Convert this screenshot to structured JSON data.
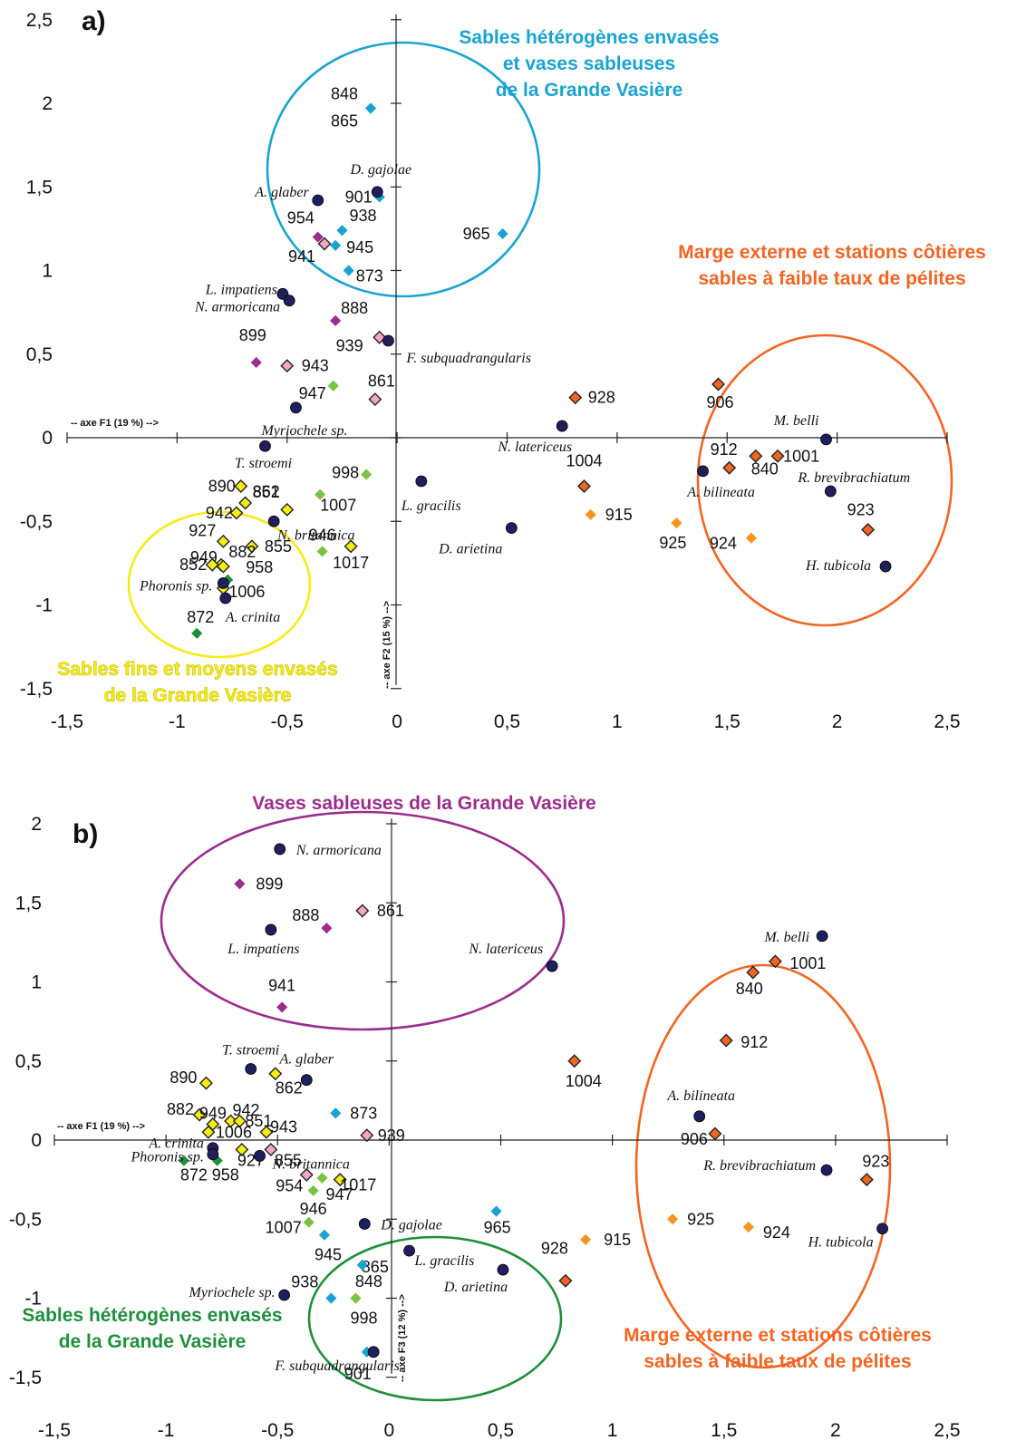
{
  "chart_data": [
    {
      "type": "scatter",
      "panel_label": "a)",
      "xlabel": "-- axe F1 (19 %) -->",
      "ylabel": "-- axe F2 (15 %) -->",
      "xlim": [
        -1.5,
        2.5
      ],
      "ylim": [
        -1.5,
        2.5
      ],
      "xticks": [
        "-1,5",
        "-1",
        "-0,5",
        "0",
        "0,5",
        "1",
        "1,5",
        "2",
        "2,5"
      ],
      "yticks": [
        "2,5",
        "2",
        "1,5",
        "1",
        "0,5",
        "0",
        "-0,5",
        "-1",
        "-1,5"
      ],
      "species": [
        {
          "name": "A. glaber",
          "x": -0.36,
          "y": 1.42
        },
        {
          "name": "D. gajolae",
          "x": -0.09,
          "y": 1.47
        },
        {
          "name": "L. impatiens",
          "x": -0.52,
          "y": 0.86
        },
        {
          "name": "N. armoricana",
          "x": -0.49,
          "y": 0.82
        },
        {
          "name": "F. subquadrangularis",
          "x": -0.04,
          "y": 0.58
        },
        {
          "name": "Myriochele sp.",
          "x": -0.46,
          "y": 0.18
        },
        {
          "name": "T. stroemi",
          "x": -0.6,
          "y": -0.05
        },
        {
          "name": "N. britannica",
          "x": -0.56,
          "y": -0.5
        },
        {
          "name": "Phoronis sp.",
          "x": -0.79,
          "y": -0.87
        },
        {
          "name": "A. crinita",
          "x": -0.78,
          "y": -0.96
        },
        {
          "name": "L. gracilis",
          "x": 0.11,
          "y": -0.26
        },
        {
          "name": "D. arietina",
          "x": 0.52,
          "y": -0.54
        },
        {
          "name": "N. latericeus",
          "x": 0.75,
          "y": 0.07
        },
        {
          "name": "M. belli",
          "x": 1.95,
          "y": -0.01
        },
        {
          "name": "A. bilineata",
          "x": 1.39,
          "y": -0.2
        },
        {
          "name": "R. brevibrachiatum",
          "x": 1.97,
          "y": -0.32
        },
        {
          "name": "H. tubicola",
          "x": 2.22,
          "y": -0.77
        }
      ],
      "stations": [
        {
          "name": "848",
          "x": -0.12,
          "y": 1.97,
          "group": "cyan"
        },
        {
          "name": "865",
          "x": -0.12,
          "y": 1.97,
          "group": "cyan"
        },
        {
          "name": "901",
          "x": -0.08,
          "y": 1.44,
          "group": "cyan"
        },
        {
          "name": "938",
          "x": -0.25,
          "y": 1.24,
          "group": "cyan"
        },
        {
          "name": "945",
          "x": -0.28,
          "y": 1.15,
          "group": "cyan"
        },
        {
          "name": "873",
          "x": -0.22,
          "y": 1.0,
          "group": "cyan"
        },
        {
          "name": "965",
          "x": 0.48,
          "y": 1.22,
          "group": "cyan"
        },
        {
          "name": "954",
          "x": -0.36,
          "y": 1.2,
          "group": "purple"
        },
        {
          "name": "941",
          "x": -0.33,
          "y": 1.16,
          "group": "pink"
        },
        {
          "name": "888",
          "x": -0.28,
          "y": 0.7,
          "group": "purple"
        },
        {
          "name": "899",
          "x": -0.64,
          "y": 0.45,
          "group": "purple"
        },
        {
          "name": "943",
          "x": -0.5,
          "y": 0.43,
          "group": "pink"
        },
        {
          "name": "939",
          "x": -0.08,
          "y": 0.6,
          "group": "pink"
        },
        {
          "name": "861",
          "x": -0.1,
          "y": 0.23,
          "group": "pink"
        },
        {
          "name": "947",
          "x": -0.29,
          "y": 0.31,
          "group": "lightgreen"
        },
        {
          "name": "998",
          "x": -0.14,
          "y": -0.22,
          "group": "lightgreen"
        },
        {
          "name": "1007",
          "x": -0.35,
          "y": -0.34,
          "group": "lightgreen"
        },
        {
          "name": "946",
          "x": -0.34,
          "y": -0.68,
          "group": "lightgreen"
        },
        {
          "name": "890",
          "x": -0.71,
          "y": -0.29,
          "group": "yellow"
        },
        {
          "name": "851",
          "x": -0.69,
          "y": -0.39,
          "group": "yellow"
        },
        {
          "name": "862",
          "x": -0.5,
          "y": -0.43,
          "group": "yellow"
        },
        {
          "name": "942",
          "x": -0.73,
          "y": -0.45,
          "group": "yellow"
        },
        {
          "name": "927",
          "x": -0.79,
          "y": -0.62,
          "group": "yellow"
        },
        {
          "name": "855",
          "x": -0.66,
          "y": -0.65,
          "group": "yellow"
        },
        {
          "name": "1017",
          "x": -0.21,
          "y": -0.65,
          "group": "yellow"
        },
        {
          "name": "949",
          "x": -0.8,
          "y": -0.76,
          "group": "yellow"
        },
        {
          "name": "852",
          "x": -0.84,
          "y": -0.76,
          "group": "yellow"
        },
        {
          "name": "882",
          "x": -0.79,
          "y": -0.77,
          "group": "yellow"
        },
        {
          "name": "958",
          "x": -0.77,
          "y": -0.85,
          "group": "darkgreen"
        },
        {
          "name": "1006",
          "x": -0.79,
          "y": -0.9,
          "group": "yellow"
        },
        {
          "name": "872",
          "x": -0.91,
          "y": -1.17,
          "group": "darkgreen"
        },
        {
          "name": "906",
          "x": 1.46,
          "y": 0.32,
          "group": "darkorange"
        },
        {
          "name": "928",
          "x": 0.81,
          "y": 0.24,
          "group": "darkorange"
        },
        {
          "name": "912",
          "x": 1.51,
          "y": -0.18,
          "group": "darkorange"
        },
        {
          "name": "840",
          "x": 1.63,
          "y": -0.11,
          "group": "darkorange"
        },
        {
          "name": "1001",
          "x": 1.73,
          "y": -0.11,
          "group": "darkorange"
        },
        {
          "name": "1004",
          "x": 0.85,
          "y": -0.29,
          "group": "darkorange"
        },
        {
          "name": "915",
          "x": 0.88,
          "y": -0.46,
          "group": "orange"
        },
        {
          "name": "925",
          "x": 1.27,
          "y": -0.51,
          "group": "orange"
        },
        {
          "name": "924",
          "x": 1.61,
          "y": -0.6,
          "group": "orange"
        },
        {
          "name": "923",
          "x": 2.14,
          "y": -0.55,
          "group": "darkorange"
        }
      ],
      "groups": [
        {
          "label": [
            "Sables hétérogènes envasés",
            "et vases sableuses",
            "de la Grande Vasière"
          ],
          "color": "#1aa3d0"
        },
        {
          "label": [
            "Marge externe et stations côtières",
            "sables à faible taux de pélites"
          ],
          "color": "#f26522"
        },
        {
          "label": [
            "Sables fins et moyens envasés",
            "de la Grande Vasière"
          ],
          "color": "#f5ec18"
        }
      ]
    },
    {
      "type": "scatter",
      "panel_label": "b)",
      "xlabel": "-- axe F1 (19 %) -->",
      "ylabel": "-- axe F3 (12 %) -->",
      "xlim": [
        -1.5,
        2.5
      ],
      "ylim": [
        -1.5,
        2.0
      ],
      "xticks": [
        "-1,5",
        "-1",
        "-0,5",
        "0",
        "0,5",
        "1",
        "1,5",
        "2",
        "2,5"
      ],
      "yticks": [
        "2",
        "1,5",
        "1",
        "0,5",
        "0",
        "-0,5",
        "-1",
        "-1,5"
      ],
      "species": [
        {
          "name": "N. armoricana",
          "x": -0.49,
          "y": 1.84
        },
        {
          "name": "L. impatiens",
          "x": -0.53,
          "y": 1.33
        },
        {
          "name": "N. latericeus",
          "x": 0.73,
          "y": 1.1
        },
        {
          "name": "T. stroemi",
          "x": -0.62,
          "y": 0.45
        },
        {
          "name": "A. glaber",
          "x": -0.37,
          "y": 0.38
        },
        {
          "name": "A. crinita",
          "x": -0.79,
          "y": -0.05
        },
        {
          "name": "Phoronis sp.",
          "x": -0.79,
          "y": -0.09
        },
        {
          "name": "N. britannica",
          "x": -0.58,
          "y": -0.1
        },
        {
          "name": "D. gajolae",
          "x": -0.11,
          "y": -0.53
        },
        {
          "name": "L. gracilis",
          "x": 0.09,
          "y": -0.7
        },
        {
          "name": "D. arietina",
          "x": 0.51,
          "y": -0.82
        },
        {
          "name": "Myriochele sp.",
          "x": -0.47,
          "y": -0.98
        },
        {
          "name": "F. subquadrangularis",
          "x": -0.07,
          "y": -1.34
        },
        {
          "name": "M. belli",
          "x": 1.94,
          "y": 1.29
        },
        {
          "name": "A. bilineata",
          "x": 1.39,
          "y": 0.15
        },
        {
          "name": "R. brevibrachiatum",
          "x": 1.96,
          "y": -0.19
        },
        {
          "name": "H. tubicola",
          "x": 2.21,
          "y": -0.56
        }
      ],
      "stations": [
        {
          "name": "899",
          "x": -0.67,
          "y": 1.62,
          "group": "purple"
        },
        {
          "name": "888",
          "x": -0.28,
          "y": 1.34,
          "group": "purple"
        },
        {
          "name": "861",
          "x": -0.12,
          "y": 1.45,
          "group": "pink"
        },
        {
          "name": "941",
          "x": -0.48,
          "y": 0.84,
          "group": "purple"
        },
        {
          "name": "890",
          "x": -0.82,
          "y": 0.36,
          "group": "yellow"
        },
        {
          "name": "862",
          "x": -0.51,
          "y": 0.42,
          "group": "yellow"
        },
        {
          "name": "873",
          "x": -0.24,
          "y": 0.17,
          "group": "cyan"
        },
        {
          "name": "882",
          "x": -0.85,
          "y": 0.16,
          "group": "yellow"
        },
        {
          "name": "949",
          "x": -0.79,
          "y": 0.1,
          "group": "yellow"
        },
        {
          "name": "942",
          "x": -0.71,
          "y": 0.12,
          "group": "yellow"
        },
        {
          "name": "851",
          "x": -0.67,
          "y": 0.12,
          "group": "yellow"
        },
        {
          "name": "1006",
          "x": -0.81,
          "y": 0.05,
          "group": "yellow"
        },
        {
          "name": "943",
          "x": -0.55,
          "y": 0.05,
          "group": "yellow"
        },
        {
          "name": "855",
          "x": -0.53,
          "y": -0.06,
          "group": "pink"
        },
        {
          "name": "927",
          "x": -0.66,
          "y": -0.06,
          "group": "yellow"
        },
        {
          "name": "939",
          "x": -0.1,
          "y": 0.03,
          "group": "pink"
        },
        {
          "name": "872",
          "x": -0.92,
          "y": -0.13,
          "group": "darkgreen"
        },
        {
          "name": "958",
          "x": -0.77,
          "y": -0.13,
          "group": "darkgreen"
        },
        {
          "name": "954",
          "x": -0.37,
          "y": -0.22,
          "group": "pink"
        },
        {
          "name": "947",
          "x": -0.3,
          "y": -0.24,
          "group": "lightgreen"
        },
        {
          "name": "1017",
          "x": -0.22,
          "y": -0.25,
          "group": "yellow"
        },
        {
          "name": "946",
          "x": -0.34,
          "y": -0.32,
          "group": "lightgreen"
        },
        {
          "name": "1007",
          "x": -0.36,
          "y": -0.52,
          "group": "lightgreen"
        },
        {
          "name": "945",
          "x": -0.29,
          "y": -0.6,
          "group": "cyan"
        },
        {
          "name": "965",
          "x": 0.48,
          "y": -0.45,
          "group": "cyan"
        },
        {
          "name": "865",
          "x": -0.12,
          "y": -0.79,
          "group": "cyan"
        },
        {
          "name": "848",
          "x": -0.12,
          "y": -0.79,
          "group": "cyan"
        },
        {
          "name": "938",
          "x": -0.26,
          "y": -1.0,
          "group": "cyan"
        },
        {
          "name": "998",
          "x": -0.15,
          "y": -1.0,
          "group": "lightgreen"
        },
        {
          "name": "901",
          "x": -0.1,
          "y": -1.34,
          "group": "cyan"
        },
        {
          "name": "1004",
          "x": 0.83,
          "y": 0.5,
          "group": "darkorange"
        },
        {
          "name": "928",
          "x": 0.79,
          "y": -0.89,
          "group": "darkorange"
        },
        {
          "name": "915",
          "x": 0.88,
          "y": -0.63,
          "group": "orange"
        },
        {
          "name": "1001",
          "x": 1.73,
          "y": 1.13,
          "group": "darkorange"
        },
        {
          "name": "840",
          "x": 1.63,
          "y": 1.06,
          "group": "darkorange"
        },
        {
          "name": "912",
          "x": 1.51,
          "y": 0.63,
          "group": "darkorange"
        },
        {
          "name": "906",
          "x": 1.46,
          "y": 0.04,
          "group": "darkorange"
        },
        {
          "name": "923",
          "x": 2.14,
          "y": -0.25,
          "group": "darkorange"
        },
        {
          "name": "925",
          "x": 1.27,
          "y": -0.5,
          "group": "orange"
        },
        {
          "name": "924",
          "x": 1.61,
          "y": -0.55,
          "group": "orange"
        }
      ],
      "groups": [
        {
          "label": [
            "Vases sableuses de la Grande Vasière"
          ],
          "color": "#9b2d8e"
        },
        {
          "label": [
            "Marge externe et stations côtières",
            "sables à faible taux de pélites"
          ],
          "color": "#f26522"
        },
        {
          "label": [
            "Sables hétérogènes envasés",
            "de la Grande Vasière"
          ],
          "color": "#1f8f3a"
        }
      ]
    }
  ],
  "colors": {
    "species_marker": "#1f1f5e",
    "cyan": "#1aa3d0",
    "purple": "#9b2d8e",
    "pink": "#f4a6c4",
    "lightgreen": "#7cc242",
    "darkgreen": "#1f8f3a",
    "yellow": "#f5ec18",
    "orange": "#f7941d",
    "darkorange": "#f26522"
  }
}
